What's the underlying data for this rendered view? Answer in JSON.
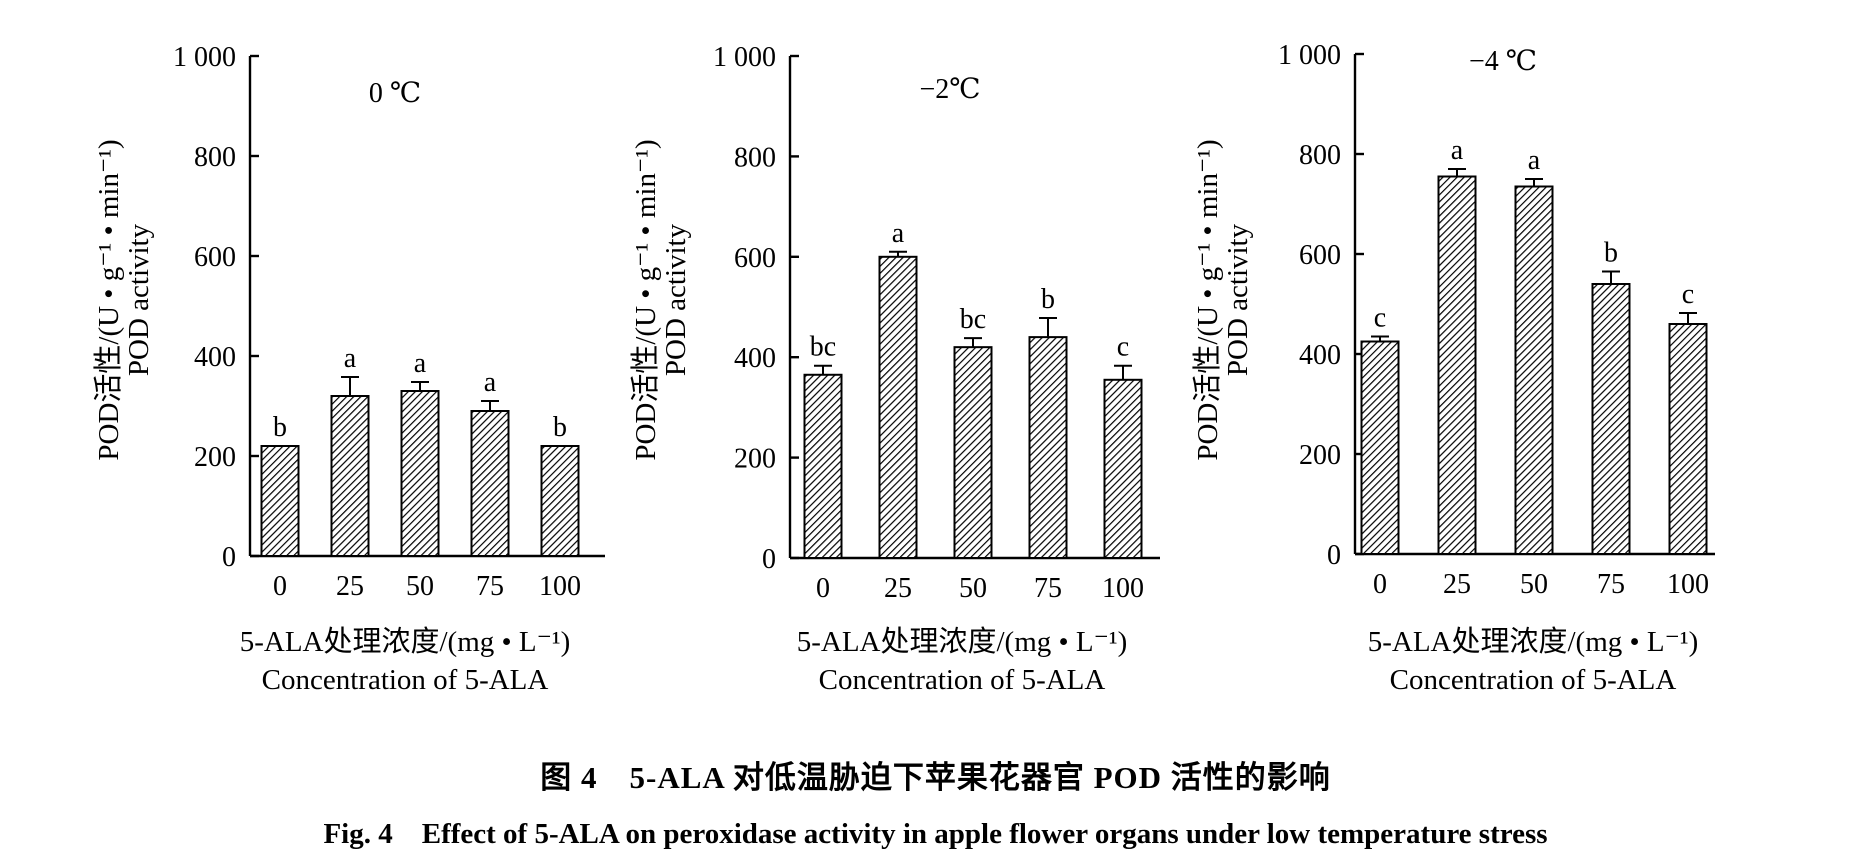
{
  "chart_data": [
    {
      "type": "bar",
      "title": "0 ℃",
      "ylabel_cn": "POD活性/(U • g⁻¹ • min⁻¹)",
      "ylabel_en": "POD activity",
      "xlabel_cn": "5-ALA处理浓度/(mg • L⁻¹)",
      "xlabel_en": "Concentration of 5-ALA",
      "categories": [
        "0",
        "25",
        "50",
        "75",
        "100"
      ],
      "values": [
        220,
        320,
        330,
        290,
        220
      ],
      "errors": [
        0,
        38,
        18,
        20,
        0
      ],
      "significance": [
        "b",
        "a",
        "a",
        "a",
        "b"
      ],
      "ylim": [
        0,
        1000
      ],
      "yticks": [
        0,
        200,
        400,
        600,
        800,
        1000
      ],
      "ytick_labels": [
        "0",
        "200",
        "400",
        "600",
        "800",
        "1 000"
      ]
    },
    {
      "type": "bar",
      "title": "−2℃",
      "ylabel_cn": "POD活性/(U • g⁻¹ • min⁻¹)",
      "ylabel_en": "POD activity",
      "xlabel_cn": "5-ALA处理浓度/(mg • L⁻¹)",
      "xlabel_en": "Concentration of 5-ALA",
      "categories": [
        "0",
        "25",
        "50",
        "75",
        "100"
      ],
      "values": [
        365,
        600,
        420,
        440,
        355
      ],
      "errors": [
        18,
        10,
        18,
        38,
        28
      ],
      "significance": [
        "bc",
        "a",
        "bc",
        "b",
        "c"
      ],
      "ylim": [
        0,
        1000
      ],
      "yticks": [
        0,
        200,
        400,
        600,
        800,
        1000
      ],
      "ytick_labels": [
        "0",
        "200",
        "400",
        "600",
        "800",
        "1 000"
      ]
    },
    {
      "type": "bar",
      "title": "−4 ℃",
      "ylabel_cn": "POD活性/(U • g⁻¹ • min⁻¹)",
      "ylabel_en": "POD activity",
      "xlabel_cn": "5-ALA处理浓度/(mg • L⁻¹)",
      "xlabel_en": "Concentration of 5-ALA",
      "categories": [
        "0",
        "25",
        "50",
        "75",
        "100"
      ],
      "values": [
        425,
        755,
        735,
        540,
        460
      ],
      "errors": [
        10,
        15,
        15,
        25,
        22
      ],
      "significance": [
        "c",
        "a",
        "a",
        "b",
        "c"
      ],
      "ylim": [
        0,
        1000
      ],
      "yticks": [
        0,
        200,
        400,
        600,
        800,
        1000
      ],
      "ytick_labels": [
        "0",
        "200",
        "400",
        "600",
        "800",
        "1 000"
      ]
    }
  ],
  "caption": {
    "cn": "图 4　5-ALA 对低温胁迫下苹果花器官 POD 活性的影响",
    "en": "Fig. 4　Effect of 5-ALA on peroxidase activity in apple flower organs under low temperature stress"
  }
}
